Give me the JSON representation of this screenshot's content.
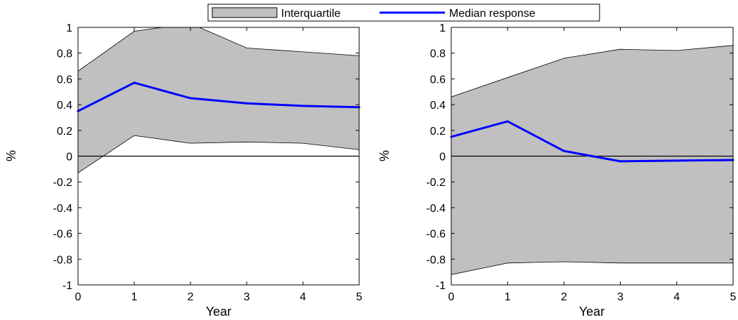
{
  "legend": {
    "band_label": "Interquartile",
    "line_label": "Median response"
  },
  "colors": {
    "band_fill": "#c0c0c0",
    "median_line": "#0000ff",
    "axis": "#000000"
  },
  "chart_data": [
    {
      "type": "line",
      "xlabel": "Year",
      "ylabel": "%",
      "xlim": [
        0,
        5
      ],
      "ylim": [
        -1,
        1
      ],
      "xticks": [
        0,
        1,
        2,
        3,
        4,
        5
      ],
      "yticks": [
        1,
        0.8,
        0.6,
        0.4,
        0.2,
        0,
        -0.2,
        -0.4,
        -0.6,
        -0.8,
        -1
      ],
      "ytick_labels": [
        "1",
        "0.8",
        "0.6",
        "0.4",
        "0.2",
        "0",
        "-0.2",
        "-0.4",
        "-0.6",
        "-0.8",
        "-1"
      ],
      "zero_line": true,
      "grid": false,
      "x": [
        0,
        1,
        2,
        3,
        4,
        5
      ],
      "series": [
        {
          "name": "Median response",
          "values": [
            0.35,
            0.57,
            0.45,
            0.41,
            0.39,
            0.38
          ]
        }
      ],
      "band": {
        "name": "Interquartile",
        "upper": [
          0.66,
          0.97,
          1.03,
          0.84,
          0.81,
          0.78
        ],
        "lower": [
          -0.13,
          0.16,
          0.1,
          0.11,
          0.1,
          0.05
        ]
      }
    },
    {
      "type": "line",
      "xlabel": "Year",
      "ylabel": "%",
      "xlim": [
        0,
        5
      ],
      "ylim": [
        -1,
        1
      ],
      "xticks": [
        0,
        1,
        2,
        3,
        4,
        5
      ],
      "yticks": [
        1,
        0.8,
        0.6,
        0.4,
        0.2,
        0,
        -0.2,
        -0.4,
        -0.6,
        -0.8,
        -1
      ],
      "ytick_labels": [
        "1",
        "0.8",
        "0.6",
        "0.4",
        "0.2",
        "0",
        "-0.2",
        "-0.4",
        "-0.6",
        "-0.8",
        "-1"
      ],
      "zero_line": true,
      "grid": false,
      "x": [
        0,
        1,
        2,
        3,
        4,
        5
      ],
      "series": [
        {
          "name": "Median response",
          "values": [
            0.15,
            0.27,
            0.04,
            -0.04,
            -0.035,
            -0.03
          ]
        }
      ],
      "band": {
        "name": "Interquartile",
        "upper": [
          0.46,
          0.61,
          0.76,
          0.83,
          0.82,
          0.86
        ],
        "lower": [
          -0.92,
          -0.83,
          -0.82,
          -0.83,
          -0.83,
          -0.83
        ]
      }
    }
  ]
}
